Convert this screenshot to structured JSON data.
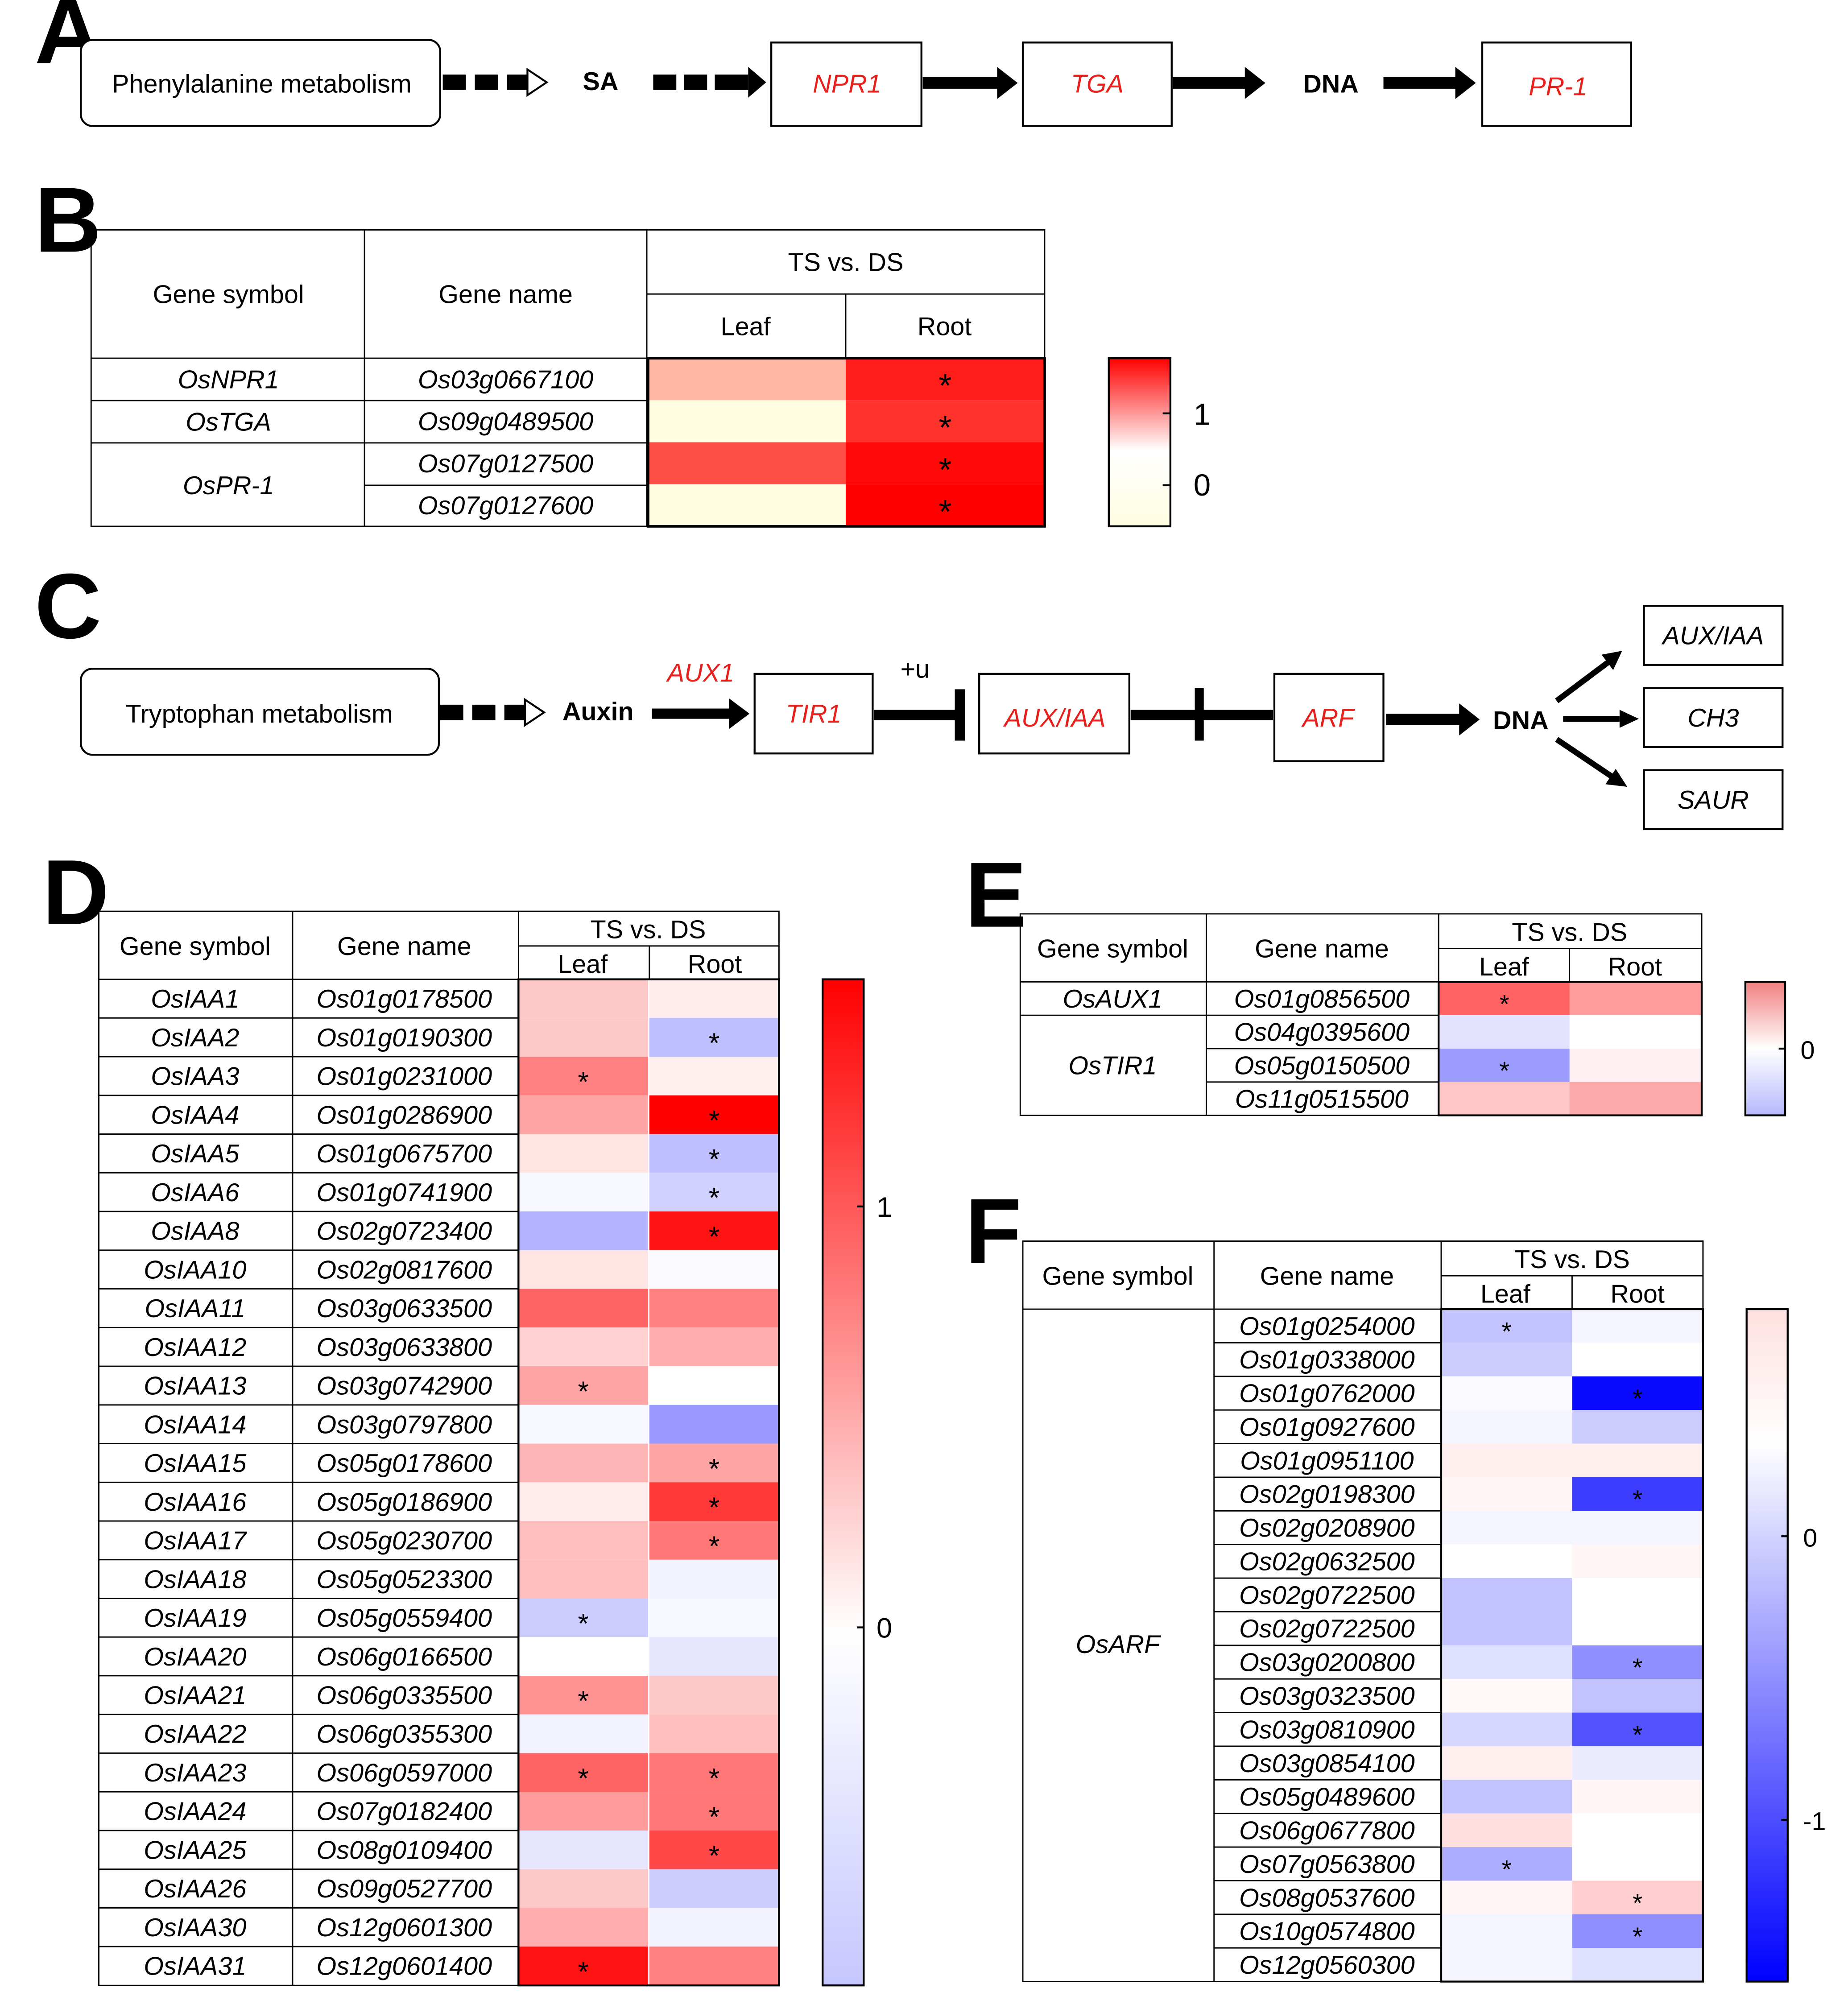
{
  "panels": {
    "a": "A",
    "b": "B",
    "c": "C",
    "d": "D",
    "e": "E",
    "f": "F"
  },
  "colors": {
    "red": "#ff0000",
    "white": "#ffffff",
    "blue": "#0000ff",
    "cream": "#fffde0",
    "label_red": "#e8201c"
  },
  "pathway_a": {
    "start": "Phenylalanine metabolism",
    "sa": "SA",
    "npr1": "NPR1",
    "tga": "TGA",
    "dna": "DNA",
    "pr1": "PR-1"
  },
  "pathway_c": {
    "start": "Tryptophan metabolism",
    "auxin": "Auxin",
    "aux1": "AUX1",
    "tir1": "TIR1",
    "plus_u": "+u",
    "auxiaa": "AUX/IAA",
    "arf": "ARF",
    "dna": "DNA",
    "out1": "AUX/IAA",
    "out2": "CH3",
    "out3": "SAUR"
  },
  "headers": {
    "symbol": "Gene symbol",
    "name": "Gene name",
    "comparison": "TS vs. DS",
    "leaf": "Leaf",
    "root": "Root"
  },
  "table_b": {
    "rows": [
      {
        "symbol": "OsNPR1",
        "name": "Os03g0667100",
        "leaf": 0.35,
        "root": 1.15,
        "leaf_sig": false,
        "root_sig": true
      },
      {
        "symbol": "OsTGA",
        "name": "Os09g0489500",
        "leaf": 0.0,
        "root": 1.05,
        "leaf_sig": false,
        "root_sig": true
      },
      {
        "symbol": "OsPR-1",
        "name": "Os07g0127500",
        "leaf": 0.9,
        "root": 1.25,
        "leaf_sig": false,
        "root_sig": true
      },
      {
        "symbol": "",
        "name": "Os07g0127600",
        "leaf": 0.0,
        "root": 1.3,
        "leaf_sig": false,
        "root_sig": true
      }
    ],
    "legend_ticks": [
      "1",
      "0"
    ]
  },
  "table_d": {
    "rows": [
      {
        "symbol": "OsIAA1",
        "name": "Os01g0178500",
        "leaf": 0.3,
        "root": 0.1,
        "leaf_sig": false,
        "root_sig": false
      },
      {
        "symbol": "OsIAA2",
        "name": "Os01g0190300",
        "leaf": 0.3,
        "root": -0.25,
        "leaf_sig": false,
        "root_sig": true
      },
      {
        "symbol": "OsIAA3",
        "name": "Os01g0231000",
        "leaf": 0.7,
        "root": 0.08,
        "leaf_sig": true,
        "root_sig": false
      },
      {
        "symbol": "OsIAA4",
        "name": "Os01g0286900",
        "leaf": 0.5,
        "root": 1.5,
        "leaf_sig": false,
        "root_sig": true
      },
      {
        "symbol": "OsIAA5",
        "name": "Os01g0675700",
        "leaf": 0.15,
        "root": -0.25,
        "leaf_sig": false,
        "root_sig": true
      },
      {
        "symbol": "OsIAA6",
        "name": "Os01g0741900",
        "leaf": -0.03,
        "root": -0.18,
        "leaf_sig": false,
        "root_sig": true
      },
      {
        "symbol": "OsIAA8",
        "name": "Os02g0723400",
        "leaf": -0.3,
        "root": 1.3,
        "leaf_sig": false,
        "root_sig": true
      },
      {
        "symbol": "OsIAA10",
        "name": "Os02g0817600",
        "leaf": 0.15,
        "root": -0.02,
        "leaf_sig": false,
        "root_sig": false
      },
      {
        "symbol": "OsIAA11",
        "name": "Os03g0633500",
        "leaf": 0.85,
        "root": 0.7,
        "leaf_sig": false,
        "root_sig": false
      },
      {
        "symbol": "OsIAA12",
        "name": "Os03g0633800",
        "leaf": 0.25,
        "root": 0.45,
        "leaf_sig": false,
        "root_sig": false
      },
      {
        "symbol": "OsIAA13",
        "name": "Os03g0742900",
        "leaf": 0.5,
        "root": 0.0,
        "leaf_sig": true,
        "root_sig": false
      },
      {
        "symbol": "OsIAA14",
        "name": "Os03g0797800",
        "leaf": -0.03,
        "root": -0.4,
        "leaf_sig": false,
        "root_sig": false
      },
      {
        "symbol": "OsIAA15",
        "name": "Os05g0178600",
        "leaf": 0.4,
        "root": 0.5,
        "leaf_sig": false,
        "root_sig": true
      },
      {
        "symbol": "OsIAA16",
        "name": "Os05g0186900",
        "leaf": 0.1,
        "root": 1.1,
        "leaf_sig": false,
        "root_sig": true
      },
      {
        "symbol": "OsIAA17",
        "name": "Os05g0230700",
        "leaf": 0.35,
        "root": 0.75,
        "leaf_sig": false,
        "root_sig": true
      },
      {
        "symbol": "OsIAA18",
        "name": "Os05g0523300",
        "leaf": 0.35,
        "root": -0.05,
        "leaf_sig": false,
        "root_sig": false
      },
      {
        "symbol": "OsIAA19",
        "name": "Os05g0559400",
        "leaf": -0.2,
        "root": -0.03,
        "leaf_sig": true,
        "root_sig": false
      },
      {
        "symbol": "OsIAA20",
        "name": "Os06g0166500",
        "leaf": 0.0,
        "root": -0.1,
        "leaf_sig": false,
        "root_sig": false
      },
      {
        "symbol": "OsIAA21",
        "name": "Os06g0335500",
        "leaf": 0.6,
        "root": 0.3,
        "leaf_sig": true,
        "root_sig": false
      },
      {
        "symbol": "OsIAA22",
        "name": "Os06g0355300",
        "leaf": -0.05,
        "root": 0.35,
        "leaf_sig": false,
        "root_sig": false
      },
      {
        "symbol": "OsIAA23",
        "name": "Os06g0597000",
        "leaf": 0.85,
        "root": 0.75,
        "leaf_sig": true,
        "root_sig": true
      },
      {
        "symbol": "OsIAA24",
        "name": "Os07g0182400",
        "leaf": 0.55,
        "root": 0.75,
        "leaf_sig": false,
        "root_sig": true
      },
      {
        "symbol": "OsIAA25",
        "name": "Os08g0109400",
        "leaf": -0.1,
        "root": 1.0,
        "leaf_sig": false,
        "root_sig": true
      },
      {
        "symbol": "OsIAA26",
        "name": "Os09g0527700",
        "leaf": 0.3,
        "root": -0.2,
        "leaf_sig": false,
        "root_sig": false
      },
      {
        "symbol": "OsIAA30",
        "name": "Os12g0601300",
        "leaf": 0.45,
        "root": -0.05,
        "leaf_sig": false,
        "root_sig": false
      },
      {
        "symbol": "OsIAA31",
        "name": "Os12g0601400",
        "leaf": 1.3,
        "root": 0.7,
        "leaf_sig": true,
        "root_sig": false
      }
    ],
    "legend_ticks": [
      "1",
      "0"
    ]
  },
  "table_e": {
    "rows": [
      {
        "symbol": "OsAUX1",
        "name": "Os01g0856500",
        "leaf": 0.55,
        "root": 0.35,
        "leaf_sig": true,
        "root_sig": false
      },
      {
        "symbol": "OsTIR1",
        "name": "Os04g0395600",
        "leaf": -0.1,
        "root": 0.0,
        "leaf_sig": false,
        "root_sig": false
      },
      {
        "symbol": "",
        "name": "Os05g0150500",
        "leaf": -0.35,
        "root": 0.05,
        "leaf_sig": true,
        "root_sig": false
      },
      {
        "symbol": "",
        "name": "Os11g0515500",
        "leaf": 0.2,
        "root": 0.3,
        "leaf_sig": false,
        "root_sig": false
      }
    ],
    "legend_ticks": [
      "0"
    ]
  },
  "table_f": {
    "symbol": "OsARF",
    "rows": [
      {
        "name": "Os01g0254000",
        "leaf": -0.3,
        "root": -0.05,
        "leaf_sig": true,
        "root_sig": false
      },
      {
        "name": "Os01g0338000",
        "leaf": -0.25,
        "root": 0.0,
        "leaf_sig": false,
        "root_sig": false
      },
      {
        "name": "Os01g0762000",
        "leaf": -0.03,
        "root": -1.2,
        "leaf_sig": false,
        "root_sig": true
      },
      {
        "name": "Os01g0927600",
        "leaf": -0.05,
        "root": -0.25,
        "leaf_sig": false,
        "root_sig": false
      },
      {
        "name": "Os01g0951100",
        "leaf": 0.05,
        "root": 0.05,
        "leaf_sig": false,
        "root_sig": false
      },
      {
        "name": "Os02g0198300",
        "leaf": 0.03,
        "root": -0.95,
        "leaf_sig": false,
        "root_sig": true
      },
      {
        "name": "Os02g0208900",
        "leaf": -0.05,
        "root": -0.05,
        "leaf_sig": false,
        "root_sig": false
      },
      {
        "name": "Os02g0632500",
        "leaf": 0.0,
        "root": 0.03,
        "leaf_sig": false,
        "root_sig": false
      },
      {
        "name": "Os02g0722500",
        "leaf": -0.3,
        "root": 0.0,
        "leaf_sig": false,
        "root_sig": false
      },
      {
        "name": "Os02g0722500",
        "leaf": -0.3,
        "root": 0.0,
        "leaf_sig": false,
        "root_sig": false
      },
      {
        "name": "Os03g0200800",
        "leaf": -0.15,
        "root": -0.55,
        "leaf_sig": false,
        "root_sig": true
      },
      {
        "name": "Os03g0323500",
        "leaf": 0.02,
        "root": -0.3,
        "leaf_sig": false,
        "root_sig": false
      },
      {
        "name": "Os03g0810900",
        "leaf": -0.2,
        "root": -0.85,
        "leaf_sig": false,
        "root_sig": true
      },
      {
        "name": "Os03g0854100",
        "leaf": 0.05,
        "root": -0.1,
        "leaf_sig": false,
        "root_sig": false
      },
      {
        "name": "Os05g0489600",
        "leaf": -0.3,
        "root": 0.03,
        "leaf_sig": false,
        "root_sig": false
      },
      {
        "name": "Os06g0677800",
        "leaf": 0.1,
        "root": 0.0,
        "leaf_sig": false,
        "root_sig": false
      },
      {
        "name": "Os07g0563800",
        "leaf": -0.4,
        "root": 0.0,
        "leaf_sig": true,
        "root_sig": false
      },
      {
        "name": "Os08g0537600",
        "leaf": 0.03,
        "root": 0.15,
        "leaf_sig": false,
        "root_sig": true
      },
      {
        "name": "Os10g0574800",
        "leaf": -0.05,
        "root": -0.55,
        "leaf_sig": false,
        "root_sig": true
      },
      {
        "name": "Os12g0560300",
        "leaf": -0.05,
        "root": -0.15,
        "leaf_sig": false,
        "root_sig": false
      }
    ],
    "legend_ticks": [
      "0",
      "-1"
    ]
  },
  "sig_marker": "*"
}
